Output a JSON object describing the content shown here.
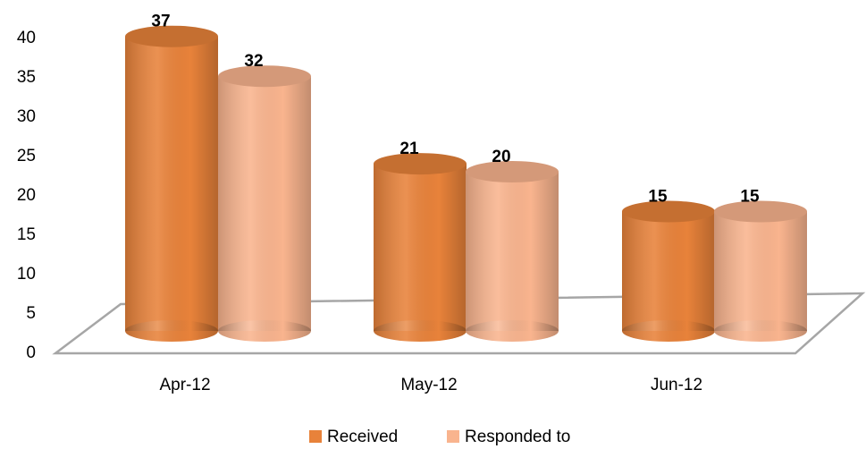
{
  "chart_data": {
    "type": "bar",
    "categories": [
      "Apr-12",
      "May-12",
      "Jun-12"
    ],
    "series": [
      {
        "name": "Received",
        "color": "#e8823a",
        "values": [
          37,
          21,
          15
        ]
      },
      {
        "name": "Responded to",
        "color": "#f9b48e",
        "values": [
          32,
          20,
          15
        ]
      }
    ],
    "ylim": [
      0,
      40
    ],
    "yticks": [
      0,
      5,
      10,
      15,
      20,
      25,
      30,
      35,
      40
    ],
    "legend": "bottom"
  }
}
